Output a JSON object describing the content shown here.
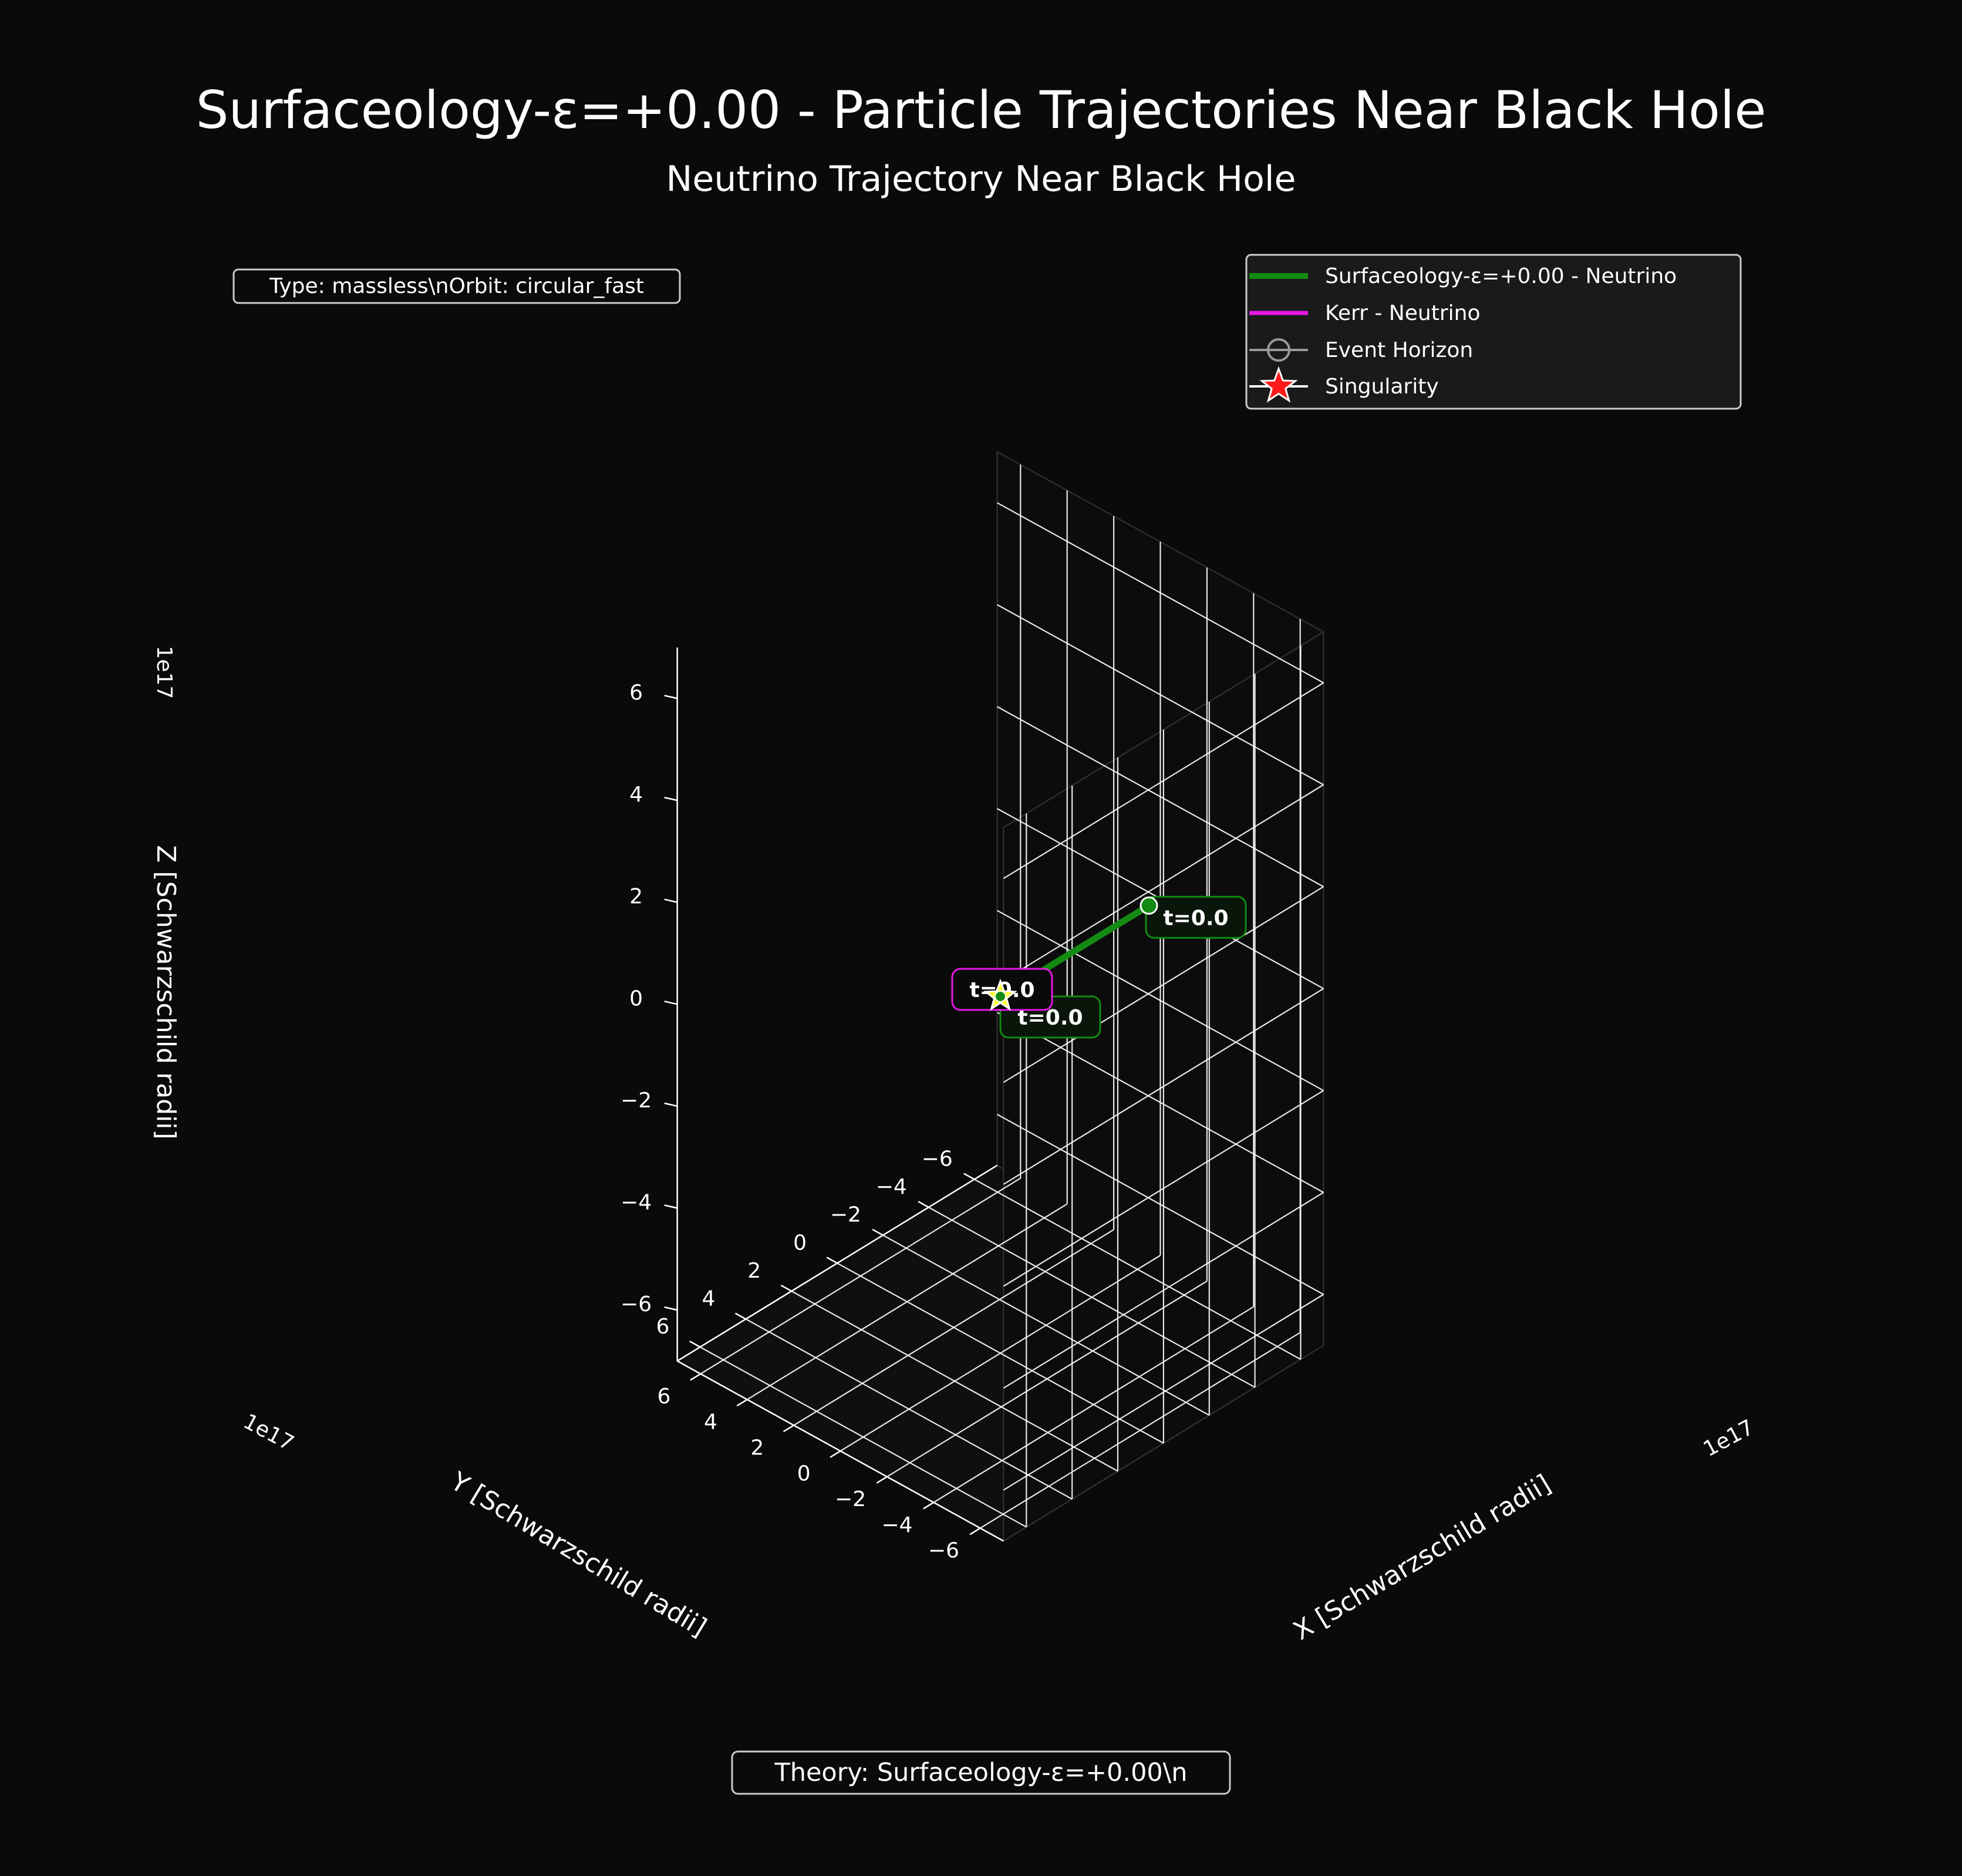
{
  "title": "Surfaceology-ε=+0.00 - Particle Trajectories Near Black Hole",
  "subtitle": "Neutrino Trajectory Near Black Hole",
  "info_box": "Type: massless\\nOrbit: circular_fast",
  "theory_box": "Theory: Surfaceology-ε=+0.00\\n",
  "colors": {
    "background": "#0a0a0a",
    "grid": "#ffffff",
    "text": "#ffffff",
    "surfaceology": "#138a13",
    "kerr": "#e619e6",
    "event_horizon": "#9a9a9a",
    "singularity_fill": "#ff1a1a",
    "singularity_highlight": "#ffff33"
  },
  "chart_data": {
    "type": "line",
    "projection": "3d",
    "xlabel": "X [Schwarzschild radii]",
    "ylabel": "Y [Schwarzschild radii]",
    "zlabel": "Z [Schwarzschild radii]",
    "axis_scale_label": "1e17",
    "xlim": [
      -7,
      7
    ],
    "ylim": [
      -7,
      7
    ],
    "zlim": [
      -7,
      7
    ],
    "xticks": [
      -6,
      -4,
      -2,
      0,
      2,
      4,
      6
    ],
    "yticks": [
      -6,
      -4,
      -2,
      0,
      2,
      4,
      6
    ],
    "zticks": [
      -6,
      -4,
      -2,
      0,
      2,
      4,
      6
    ],
    "xtick_labels": [
      "−6",
      "−4",
      "−2",
      "0",
      "2",
      "4",
      "6"
    ],
    "ytick_labels": [
      "−6",
      "−4",
      "−2",
      "0",
      "2",
      "4",
      "6"
    ],
    "ztick_labels": [
      "−6",
      "−4",
      "−2",
      "0",
      "2",
      "4",
      "6"
    ],
    "grid": true,
    "legend_position": "top-right",
    "series": [
      {
        "name": "Surfaceology-ε=+0.00 - Neutrino",
        "color": "#138a13",
        "points": [
          [
            0,
            0,
            0
          ],
          [
            -6.5,
            0,
            0
          ]
        ],
        "start_label": "t=0.0",
        "end_label": "t=0.0"
      },
      {
        "name": "Kerr - Neutrino",
        "color": "#e619e6",
        "points": [
          [
            0,
            0,
            0
          ]
        ],
        "start_label": "t=0.0"
      }
    ],
    "markers": [
      {
        "name": "Event Horizon",
        "position": [
          0,
          0,
          0
        ]
      },
      {
        "name": "Singularity",
        "position": [
          0,
          0,
          0
        ]
      }
    ]
  }
}
